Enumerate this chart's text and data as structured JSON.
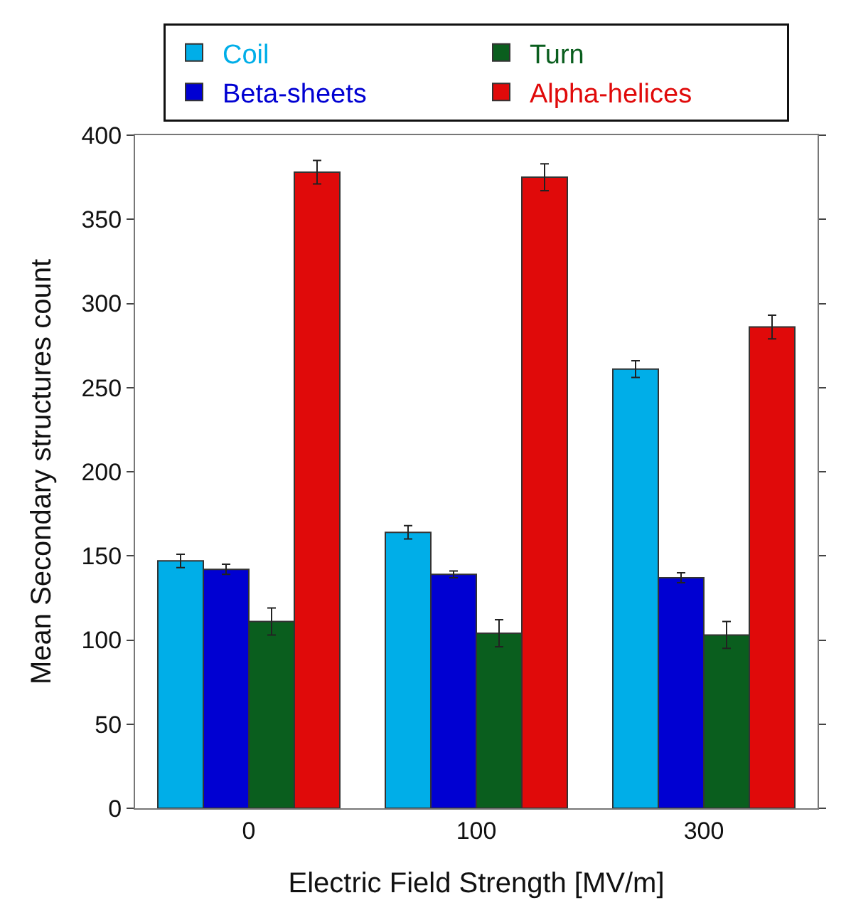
{
  "chart_data": {
    "type": "bar",
    "xlabel": "Electric Field Strength [MV/m]",
    "ylabel": "Mean Secondary structures count",
    "categories": [
      "0",
      "100",
      "300"
    ],
    "series": [
      {
        "name": "Coil",
        "color": "#00aee8",
        "values": [
          147,
          164,
          261
        ],
        "errors": [
          4,
          4,
          5
        ]
      },
      {
        "name": "Beta-sheets",
        "color": "#0000d2",
        "values": [
          142,
          139,
          137
        ],
        "errors": [
          3,
          2,
          3
        ]
      },
      {
        "name": "Turn",
        "color": "#0a5e1e",
        "values": [
          111,
          104,
          103
        ],
        "errors": [
          8,
          8,
          8
        ]
      },
      {
        "name": "Alpha-helices",
        "color": "#e00a0a",
        "values": [
          378,
          375,
          286
        ],
        "errors": [
          7,
          8,
          7
        ]
      }
    ],
    "ylim": [
      0,
      400
    ],
    "yticks": [
      0,
      50,
      100,
      150,
      200,
      250,
      300,
      350,
      400
    ],
    "legend": "top",
    "grid": false
  }
}
